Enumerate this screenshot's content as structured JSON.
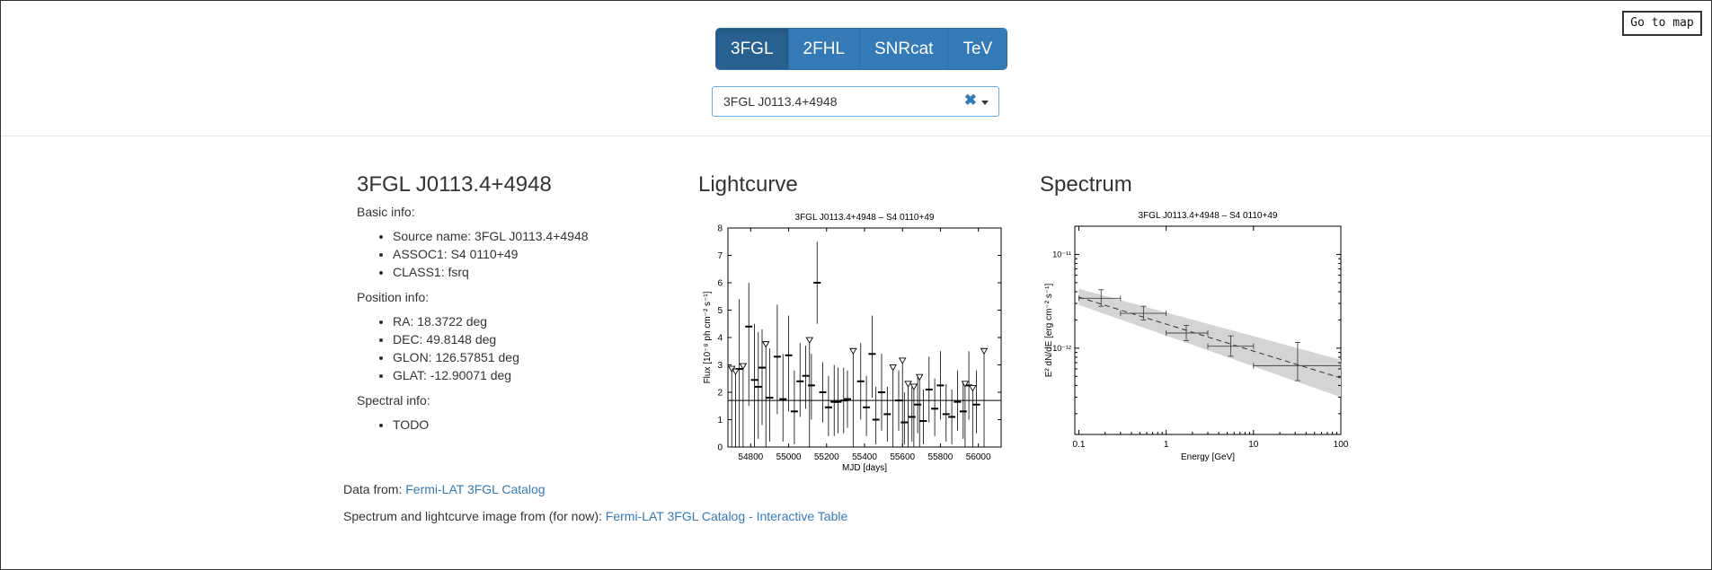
{
  "toolbar": {
    "catalogs": [
      "3FGL",
      "2FHL",
      "SNRcat",
      "TeV"
    ],
    "active_catalog": "3FGL",
    "go_to_map_label": "Go to map"
  },
  "source_select": {
    "value": "3FGL J0113.4+4948",
    "clear_glyph": "✖"
  },
  "info": {
    "title": "3FGL J0113.4+4948",
    "basic_label": "Basic info:",
    "basic_items": [
      "Source name: 3FGL J0113.4+4948",
      "ASSOC1: S4 0110+49",
      "CLASS1: fsrq"
    ],
    "position_label": "Position info:",
    "position_items": [
      "RA: 18.3722 deg",
      "DEC: 49.8148 deg",
      "GLON: 126.57851 deg",
      "GLAT: -12.90071 deg"
    ],
    "spectral_label": "Spectral info:",
    "spectral_items": [
      "TODO"
    ]
  },
  "lightcurve_title": "Lightcurve",
  "spectrum_title": "Spectrum",
  "footer": {
    "data_from_prefix": "Data from: ",
    "data_from_link": "Fermi-LAT 3FGL Catalog",
    "images_prefix": "Spectrum and lightcurve image from (for now): ",
    "images_link": "Fermi-LAT 3FGL Catalog - Interactive Table"
  },
  "colors": {
    "button": "#337ab7",
    "button_active": "#286090",
    "link": "#337ab7",
    "band": "#d4d4d4"
  },
  "chart_data": [
    {
      "type": "scatter",
      "title": "3FGL J0113.4+4948 – S4 0110+49",
      "xlabel": "MJD [days]",
      "ylabel": "Flux [10⁻⁸ ph cm⁻² s⁻¹]",
      "xlim": [
        54680,
        56120
      ],
      "ylim": [
        0,
        8
      ],
      "xticks": [
        54800,
        55000,
        55200,
        55400,
        55600,
        55800,
        56000
      ],
      "yticks": [
        0,
        1,
        2,
        3,
        4,
        5,
        6,
        7,
        8
      ],
      "mean_flux": 1.7,
      "detections": [
        {
          "x": 54740,
          "y": 2.85,
          "lo": 0.0,
          "hi": 5.4
        },
        {
          "x": 54790,
          "y": 4.4,
          "lo": 1.5,
          "hi": 6.0
        },
        {
          "x": 54820,
          "y": 2.45,
          "lo": 0.0,
          "hi": 4.5
        },
        {
          "x": 54840,
          "y": 2.2,
          "lo": 0.3,
          "hi": 4.2
        },
        {
          "x": 54860,
          "y": 2.9,
          "lo": 0.8,
          "hi": 4.3
        },
        {
          "x": 54900,
          "y": 1.8,
          "lo": 0.2,
          "hi": 3.6
        },
        {
          "x": 54940,
          "y": 3.3,
          "lo": 1.2,
          "hi": 5.2
        },
        {
          "x": 54970,
          "y": 1.75,
          "lo": 0.2,
          "hi": 3.4
        },
        {
          "x": 55000,
          "y": 3.35,
          "lo": 1.3,
          "hi": 4.8
        },
        {
          "x": 55030,
          "y": 1.3,
          "lo": 0.1,
          "hi": 2.8
        },
        {
          "x": 55060,
          "y": 2.4,
          "lo": 1.1,
          "hi": 3.8
        },
        {
          "x": 55090,
          "y": 2.6,
          "lo": 1.4,
          "hi": 3.7
        },
        {
          "x": 55120,
          "y": 2.25,
          "lo": 1.0,
          "hi": 3.4
        },
        {
          "x": 55150,
          "y": 6.0,
          "lo": 4.5,
          "hi": 7.5
        },
        {
          "x": 55180,
          "y": 2.0,
          "lo": 0.9,
          "hi": 3.1
        },
        {
          "x": 55210,
          "y": 1.45,
          "lo": 0.4,
          "hi": 2.6
        },
        {
          "x": 55240,
          "y": 1.65,
          "lo": 0.4,
          "hi": 3.0
        },
        {
          "x": 55260,
          "y": 1.65,
          "lo": 0.5,
          "hi": 2.9
        },
        {
          "x": 55290,
          "y": 1.7,
          "lo": 0.5,
          "hi": 2.9
        },
        {
          "x": 55310,
          "y": 1.75,
          "lo": 0.7,
          "hi": 2.8
        },
        {
          "x": 55380,
          "y": 2.4,
          "lo": 1.0,
          "hi": 3.8
        },
        {
          "x": 55410,
          "y": 1.45,
          "lo": 0.4,
          "hi": 2.6
        },
        {
          "x": 55440,
          "y": 3.4,
          "lo": 1.8,
          "hi": 4.8
        },
        {
          "x": 55460,
          "y": 1.0,
          "lo": 0.1,
          "hi": 2.2
        },
        {
          "x": 55490,
          "y": 2.0,
          "lo": 0.6,
          "hi": 3.4
        },
        {
          "x": 55520,
          "y": 1.2,
          "lo": 0.2,
          "hi": 2.2
        },
        {
          "x": 55580,
          "y": 1.7,
          "lo": 0.6,
          "hi": 2.8
        },
        {
          "x": 55610,
          "y": 0.9,
          "lo": 0.1,
          "hi": 2.0
        },
        {
          "x": 55650,
          "y": 1.1,
          "lo": 0.2,
          "hi": 2.2
        },
        {
          "x": 55680,
          "y": 1.55,
          "lo": 0.5,
          "hi": 2.6
        },
        {
          "x": 55710,
          "y": 0.95,
          "lo": 0.1,
          "hi": 2.1
        },
        {
          "x": 55740,
          "y": 2.1,
          "lo": 0.9,
          "hi": 3.3
        },
        {
          "x": 55770,
          "y": 1.4,
          "lo": 0.4,
          "hi": 2.5
        },
        {
          "x": 55800,
          "y": 2.25,
          "lo": 1.0,
          "hi": 3.5
        },
        {
          "x": 55830,
          "y": 1.2,
          "lo": 0.2,
          "hi": 2.3
        },
        {
          "x": 55860,
          "y": 1.1,
          "lo": 0.1,
          "hi": 2.1
        },
        {
          "x": 55890,
          "y": 1.65,
          "lo": 0.6,
          "hi": 2.8
        },
        {
          "x": 55920,
          "y": 1.3,
          "lo": 0.3,
          "hi": 2.4
        },
        {
          "x": 55950,
          "y": 2.25,
          "lo": 1.0,
          "hi": 3.5
        },
        {
          "x": 55990,
          "y": 1.55,
          "lo": 0.5,
          "hi": 2.8
        }
      ],
      "upper_limits": [
        {
          "x": 54700,
          "y": 2.85
        },
        {
          "x": 54720,
          "y": 2.75
        },
        {
          "x": 54760,
          "y": 2.95
        },
        {
          "x": 54880,
          "y": 3.75
        },
        {
          "x": 55110,
          "y": 3.9
        },
        {
          "x": 55340,
          "y": 3.5
        },
        {
          "x": 55550,
          "y": 2.9
        },
        {
          "x": 55600,
          "y": 3.15
        },
        {
          "x": 55630,
          "y": 2.3
        },
        {
          "x": 55660,
          "y": 2.2
        },
        {
          "x": 55690,
          "y": 2.55
        },
        {
          "x": 55930,
          "y": 2.3
        },
        {
          "x": 55970,
          "y": 2.15
        },
        {
          "x": 56030,
          "y": 3.5
        }
      ]
    },
    {
      "type": "scatter",
      "title": "3FGL J0113.4+4948 – S4 0110+49",
      "xlabel": "Energy [GeV]",
      "ylabel": "E² dN/dE [erg cm⁻² s⁻¹]",
      "log_x": true,
      "log_y": true,
      "xlim": [
        0.09,
        100
      ],
      "ylim": [
        1.2e-13,
        2e-11
      ],
      "xticks": [
        "0.1",
        "1",
        "10",
        "100"
      ],
      "yticks": [
        "10⁻¹¹",
        "10⁻¹²"
      ],
      "points": [
        {
          "e": 0.18,
          "elo": 0.1,
          "ehi": 0.3,
          "y": 3.4e-12,
          "ylo": 2.8e-12,
          "yhi": 4.2e-12
        },
        {
          "e": 0.55,
          "elo": 0.3,
          "ehi": 1.0,
          "y": 2.35e-12,
          "ylo": 2e-12,
          "yhi": 2.8e-12
        },
        {
          "e": 1.7,
          "elo": 1.0,
          "ehi": 3.0,
          "y": 1.45e-12,
          "ylo": 1.2e-12,
          "yhi": 1.75e-12
        },
        {
          "e": 5.5,
          "elo": 3.0,
          "ehi": 10.0,
          "y": 1.05e-12,
          "ylo": 8.2e-13,
          "yhi": 1.35e-12
        },
        {
          "e": 32,
          "elo": 10.0,
          "ehi": 100.0,
          "y": 6.5e-13,
          "ylo": 4.5e-13,
          "yhi": 1.15e-12
        }
      ],
      "model": {
        "from": [
          0.1,
          3.5e-12
        ],
        "to": [
          100,
          4.8e-13
        ],
        "band_lo_start": 2.9e-12,
        "band_hi_start": 4.3e-12,
        "band_lo_end": 3e-13,
        "band_hi_end": 7.5e-13
      }
    }
  ]
}
